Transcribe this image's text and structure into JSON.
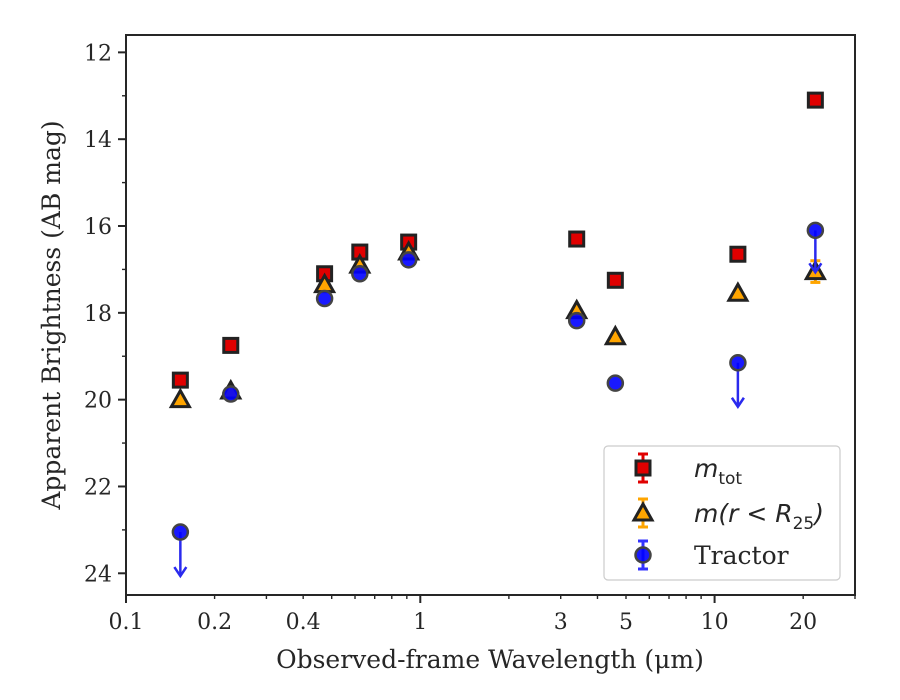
{
  "chart_data": {
    "type": "scatter",
    "xlabel": "Observed-frame Wavelength (μm)",
    "ylabel": "Apparent Brightness (AB mag)",
    "xscale": "log",
    "xlim": [
      0.1,
      30
    ],
    "ylim": [
      24.5,
      11.6
    ],
    "y_inverted": true,
    "x_ticks": [
      0.1,
      0.2,
      0.4,
      1,
      3,
      5,
      10,
      20
    ],
    "x_tick_labels": [
      "0.1",
      "0.2",
      "0.4",
      "1",
      "3",
      "5",
      "10",
      "20"
    ],
    "y_ticks": [
      12,
      14,
      16,
      18,
      20,
      22,
      24
    ],
    "y_tick_labels": [
      "12",
      "14",
      "16",
      "18",
      "20",
      "22",
      "24"
    ],
    "legend_position": "lower-right",
    "series": [
      {
        "name": "m_tot",
        "label_parts": {
          "main": "m",
          "sub": "tot"
        },
        "marker": "square",
        "color": "#e00000",
        "edge_color": "#222222",
        "errorbar_color": "#e00000",
        "points": [
          {
            "x": 0.153,
            "y": 19.55
          },
          {
            "x": 0.227,
            "y": 18.75
          },
          {
            "x": 0.473,
            "y": 17.1
          },
          {
            "x": 0.623,
            "y": 16.6
          },
          {
            "x": 0.913,
            "y": 16.37
          },
          {
            "x": 3.4,
            "y": 16.3
          },
          {
            "x": 4.6,
            "y": 17.25
          },
          {
            "x": 12.0,
            "y": 16.65
          },
          {
            "x": 22.0,
            "y": 13.1
          }
        ]
      },
      {
        "name": "m(r < R_25)",
        "label_parts": {
          "main": "m(r < R",
          "sub": "25",
          "close": ")"
        },
        "marker": "triangle",
        "color": "#ffa500",
        "edge_color": "#222222",
        "errorbar_color": "#ffa500",
        "points": [
          {
            "x": 0.153,
            "y": 20.0
          },
          {
            "x": 0.227,
            "y": 19.8
          },
          {
            "x": 0.473,
            "y": 17.35
          },
          {
            "x": 0.623,
            "y": 16.9
          },
          {
            "x": 0.913,
            "y": 16.6
          },
          {
            "x": 3.4,
            "y": 17.95
          },
          {
            "x": 4.6,
            "y": 18.55
          },
          {
            "x": 12.0,
            "y": 17.55
          },
          {
            "x": 22.0,
            "y": 17.05,
            "err": 0.25
          }
        ]
      },
      {
        "name": "Tractor",
        "marker": "circle",
        "color": "#0000ff",
        "edge_color": "#444444",
        "errorbar_color": "#3333ff",
        "points": [
          {
            "x": 0.153,
            "y": 23.05,
            "upper_limit": true
          },
          {
            "x": 0.227,
            "y": 19.87
          },
          {
            "x": 0.473,
            "y": 17.67
          },
          {
            "x": 0.623,
            "y": 17.1
          },
          {
            "x": 0.913,
            "y": 16.78
          },
          {
            "x": 3.4,
            "y": 18.18
          },
          {
            "x": 4.6,
            "y": 19.62
          },
          {
            "x": 12.0,
            "y": 19.15,
            "upper_limit": true
          },
          {
            "x": 22.0,
            "y": 16.1,
            "lower_limit": true
          }
        ]
      }
    ]
  }
}
